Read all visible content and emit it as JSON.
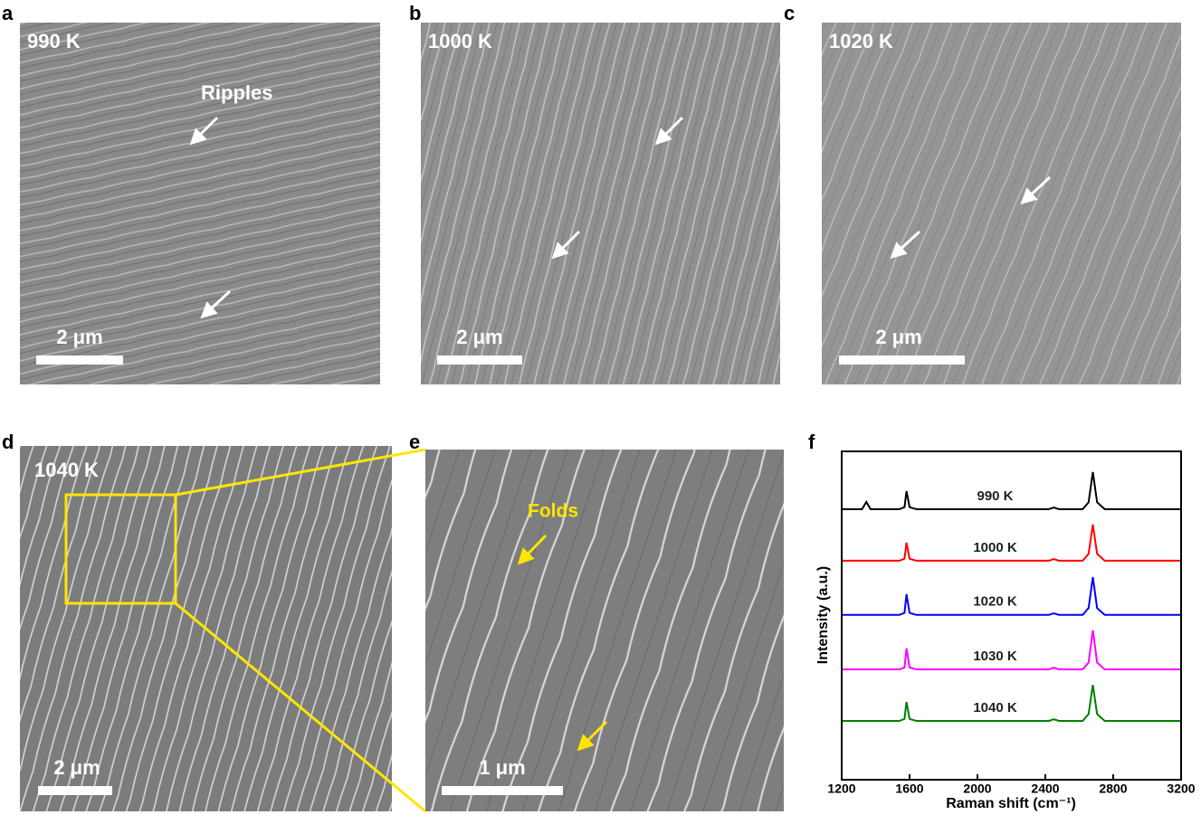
{
  "panels": [
    {
      "label": "a",
      "title": "990 K",
      "scale_bar": "2 μm",
      "annotation": "Ripples"
    },
    {
      "label": "b",
      "title": "1000 K",
      "scale_bar": "2 μm"
    },
    {
      "label": "c",
      "title": "1020 K",
      "scale_bar": "2 μm"
    },
    {
      "label": "d",
      "title": "1040 K",
      "scale_bar": "2 μm"
    },
    {
      "label": "e",
      "scale_bar": "1 μm",
      "annotation": "Folds"
    }
  ],
  "chart_data": {
    "type": "line",
    "panel_label": "f",
    "x_label": "Raman shift (cm⁻¹)",
    "y_label": "Intensity (a.u.)",
    "x": [
      1200,
      1320,
      1345,
      1370,
      1540,
      1570,
      1582,
      1600,
      1640,
      2420,
      2450,
      2480,
      2620,
      2655,
      2680,
      2705,
      2750,
      3200
    ],
    "series": [
      {
        "name": "990 K",
        "color": "#000000",
        "values": [
          8.24,
          8.24,
          8.46,
          8.24,
          8.24,
          8.3,
          8.79,
          8.3,
          8.24,
          8.24,
          8.29,
          8.24,
          8.24,
          8.45,
          9.37,
          8.45,
          8.24,
          8.24
        ]
      },
      {
        "name": "1000 K",
        "color": "#ff0000",
        "values": [
          6.67,
          6.67,
          6.67,
          6.67,
          6.67,
          6.73,
          7.22,
          6.73,
          6.67,
          6.67,
          6.72,
          6.67,
          6.67,
          6.88,
          7.77,
          6.88,
          6.67,
          6.67
        ]
      },
      {
        "name": "1020 K",
        "color": "#0000ff",
        "values": [
          5.02,
          5.02,
          5.02,
          5.02,
          5.02,
          5.08,
          5.65,
          5.08,
          5.02,
          5.02,
          5.07,
          5.02,
          5.02,
          5.23,
          6.17,
          5.23,
          5.02,
          5.02
        ]
      },
      {
        "name": "1030 K",
        "color": "#ff00ff",
        "values": [
          3.36,
          3.36,
          3.36,
          3.36,
          3.36,
          3.42,
          4.0,
          3.42,
          3.36,
          3.36,
          3.41,
          3.36,
          3.36,
          3.57,
          4.55,
          3.57,
          3.36,
          3.36
        ]
      },
      {
        "name": "1040 K",
        "color": "#008000",
        "values": [
          1.79,
          1.79,
          1.79,
          1.79,
          1.79,
          1.85,
          2.37,
          1.85,
          1.79,
          1.79,
          1.84,
          1.79,
          1.79,
          2.0,
          2.89,
          2.0,
          1.79,
          1.79
        ]
      }
    ],
    "xlim": [
      1200,
      3200
    ],
    "xticks": [
      1200,
      1600,
      2000,
      2400,
      2800,
      3200
    ],
    "ylim": [
      0,
      10
    ]
  }
}
